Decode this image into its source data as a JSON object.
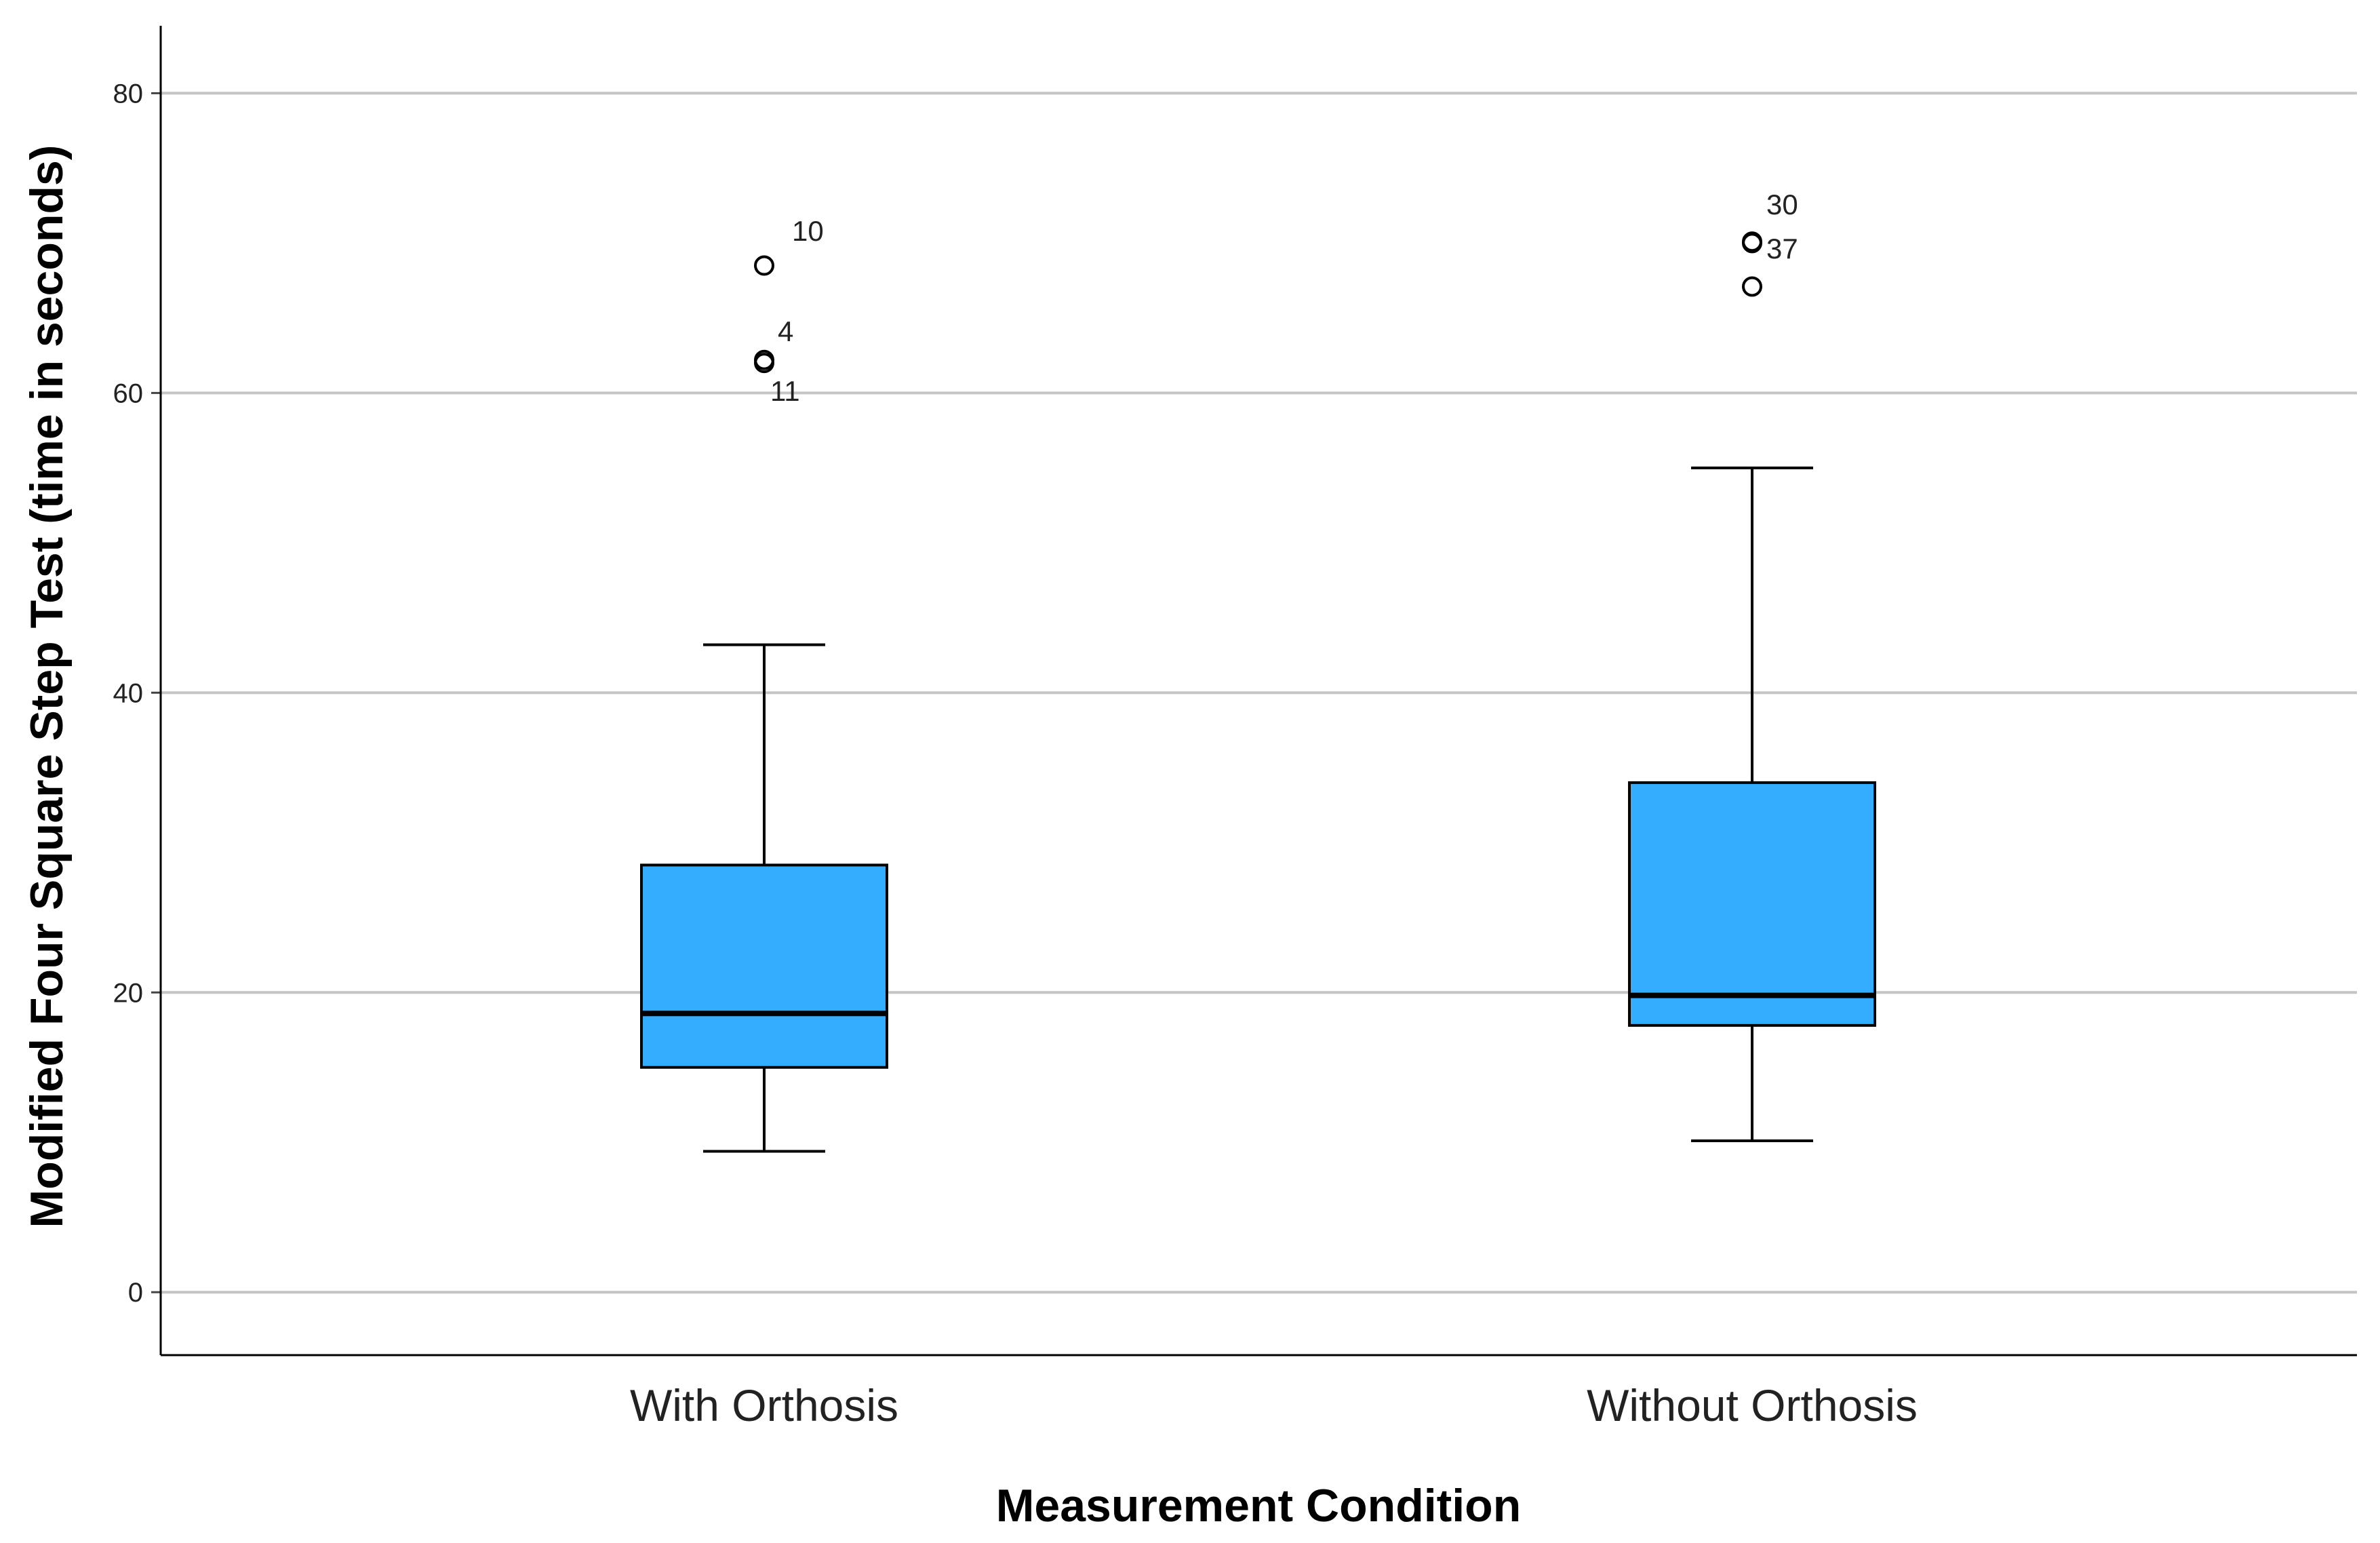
{
  "chart_data": {
    "type": "boxplot",
    "title": "",
    "xlabel": "Measurement Condition",
    "ylabel": "Modified Four Square Step Test (time in seconds)",
    "ylim": [
      -4.2,
      84.5
    ],
    "yticks": [
      0,
      20,
      40,
      60,
      80
    ],
    "grid": true,
    "box_color": "#33adff",
    "categories": [
      "With Orthosis",
      "Without Orthosis"
    ],
    "boxes": [
      {
        "label": "With Orthosis",
        "whisker_low": 9.4,
        "q1": 15.0,
        "median": 18.6,
        "q3": 28.5,
        "whisker_high": 43.2,
        "outliers": [
          {
            "value": 68.5,
            "label": "10"
          },
          {
            "value": 62.2,
            "label": "4"
          },
          {
            "value": 62.0,
            "label": "11"
          }
        ]
      },
      {
        "label": "Without Orthosis",
        "whisker_low": 10.1,
        "q1": 17.8,
        "median": 19.8,
        "q3": 34.0,
        "whisker_high": 55.0,
        "outliers": [
          {
            "value": 70.1,
            "label": "30"
          },
          {
            "value": 70.0,
            "label": "37"
          },
          {
            "value": 67.1,
            "label": ""
          }
        ]
      }
    ]
  }
}
